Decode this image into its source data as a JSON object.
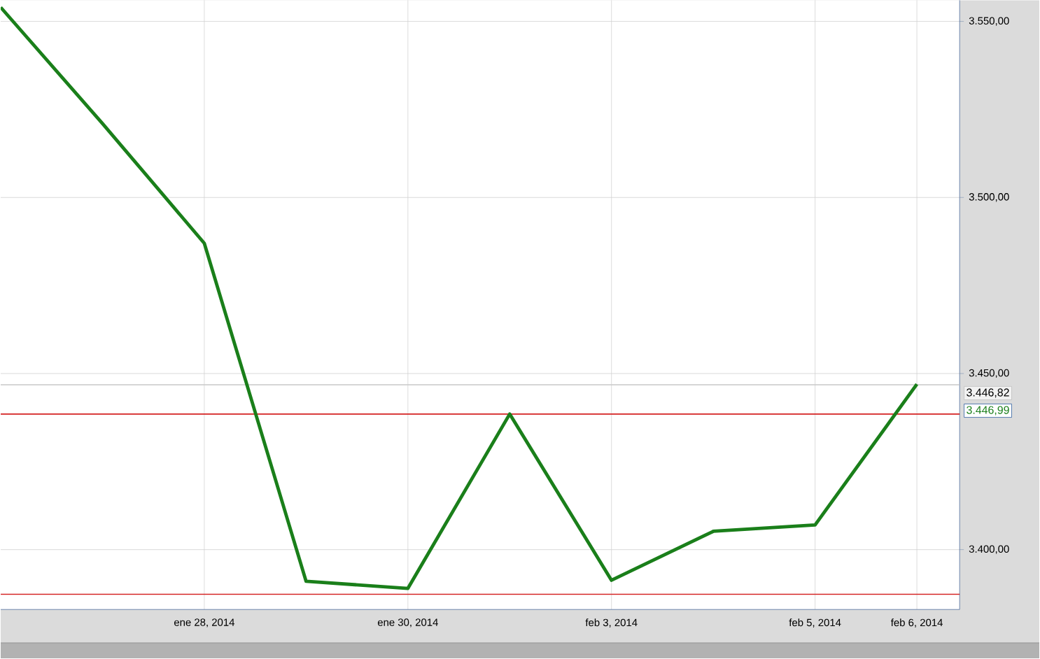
{
  "chart_data": {
    "type": "line",
    "categories": [
      null,
      null,
      "ene 28, 2014",
      null,
      "ene 30, 2014",
      null,
      "feb 3, 2014",
      null,
      "feb 5, 2014",
      "feb 6, 2014"
    ],
    "series": [
      {
        "color": "#1a7f1a",
        "values": [
          3554,
          3521,
          3487,
          3391,
          3389,
          3438.5,
          3391.3,
          3405.2,
          3407,
          3447
        ]
      }
    ],
    "ylim": [
      3383,
      3556
    ],
    "yticks": [
      {
        "value": 3400,
        "label": "3.400,00"
      },
      {
        "value": 3450,
        "label": "3.450,00"
      },
      {
        "value": 3500,
        "label": "3.500,00"
      },
      {
        "value": 3550,
        "label": "3.550,00"
      }
    ],
    "ref_lines": [
      {
        "axis": "y",
        "value": 3438.5,
        "color": "#d42020"
      },
      {
        "axis": "y",
        "value": 3387.3,
        "color": "#d42020"
      },
      {
        "axis": "y",
        "value": 3446.82,
        "label": "3.446,82",
        "color": "#c8c8c8"
      }
    ],
    "annotations": [
      "3.446,99"
    ],
    "grid": true,
    "marker": "none",
    "line_style": "solid"
  }
}
